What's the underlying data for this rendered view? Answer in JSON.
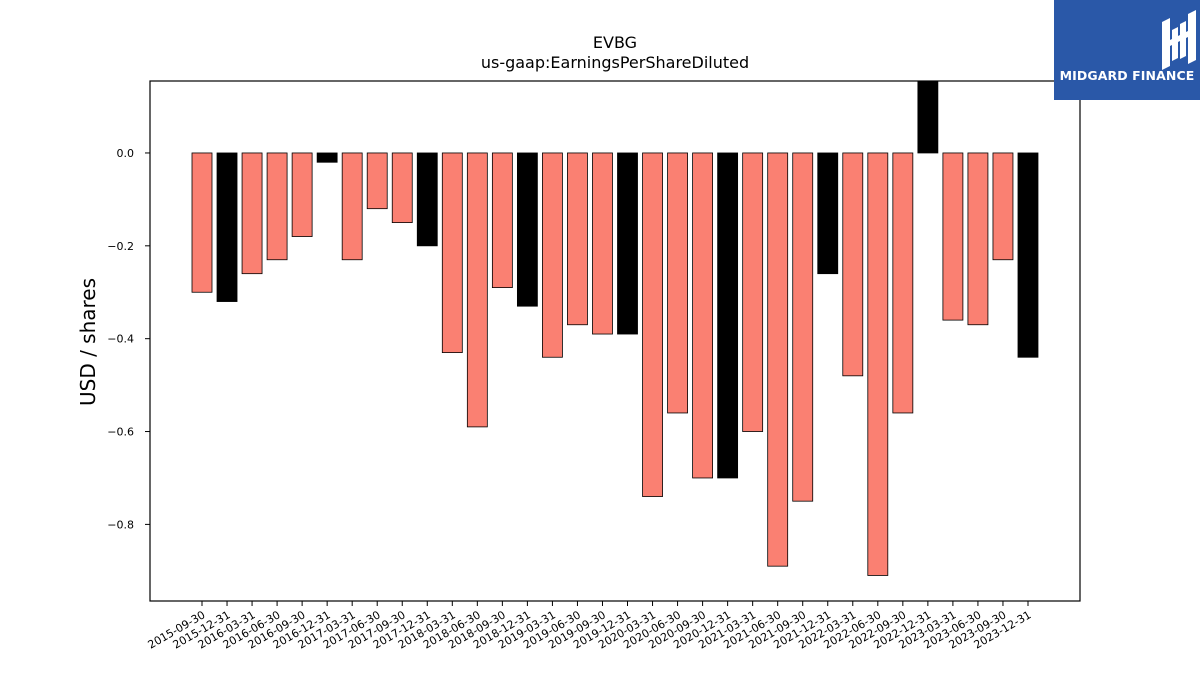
{
  "brand": {
    "name": "MIDGARD FINANCE",
    "bg_color": "#2a58a8",
    "icon": "midgard-logo-icon"
  },
  "chart_data": {
    "type": "bar",
    "title": "EVBG",
    "subtitle": "us-gaap:EarningsPerShareDiluted",
    "xlabel": "",
    "ylabel": "USD / shares",
    "ylim": [
      -0.965,
      0.155
    ],
    "yticks": [
      0.0,
      -0.2,
      -0.4,
      -0.6,
      -0.8
    ],
    "ytick_labels": [
      "0.0",
      "−0.2",
      "−0.4",
      "−0.6",
      "−0.8"
    ],
    "grid": false,
    "colors": {
      "quarter": "#fa8072",
      "annual": "#000000",
      "edge": "#000000"
    },
    "categories": [
      "2015-09-30",
      "2015-12-31",
      "2016-03-31",
      "2016-06-30",
      "2016-09-30",
      "2016-12-31",
      "2017-03-31",
      "2017-06-30",
      "2017-09-30",
      "2017-12-31",
      "2018-03-31",
      "2018-06-30",
      "2018-09-30",
      "2018-12-31",
      "2019-03-31",
      "2019-06-30",
      "2019-09-30",
      "2019-12-31",
      "2020-03-31",
      "2020-06-30",
      "2020-09-30",
      "2020-12-31",
      "2021-03-31",
      "2021-06-30",
      "2021-09-30",
      "2021-12-31",
      "2022-03-31",
      "2022-06-30",
      "2022-09-30",
      "2022-12-31",
      "2023-03-31",
      "2023-06-30",
      "2023-09-30",
      "2023-12-31"
    ],
    "values": [
      -0.3,
      -0.32,
      -0.26,
      -0.23,
      -0.18,
      -0.02,
      -0.23,
      -0.12,
      -0.15,
      -0.2,
      -0.43,
      -0.59,
      -0.29,
      -0.33,
      -0.44,
      -0.37,
      -0.39,
      -0.39,
      -0.74,
      -0.56,
      -0.7,
      -0.7,
      -0.6,
      -0.89,
      -0.75,
      -0.26,
      -0.48,
      -0.91,
      -0.56,
      0.16,
      -0.36,
      -0.37,
      -0.23,
      -0.44
    ],
    "bar_kind": [
      "quarter",
      "annual",
      "quarter",
      "quarter",
      "quarter",
      "annual",
      "quarter",
      "quarter",
      "quarter",
      "annual",
      "quarter",
      "quarter",
      "quarter",
      "annual",
      "quarter",
      "quarter",
      "quarter",
      "annual",
      "quarter",
      "quarter",
      "quarter",
      "annual",
      "quarter",
      "quarter",
      "quarter",
      "annual",
      "quarter",
      "quarter",
      "quarter",
      "annual",
      "quarter",
      "quarter",
      "quarter",
      "annual"
    ]
  }
}
